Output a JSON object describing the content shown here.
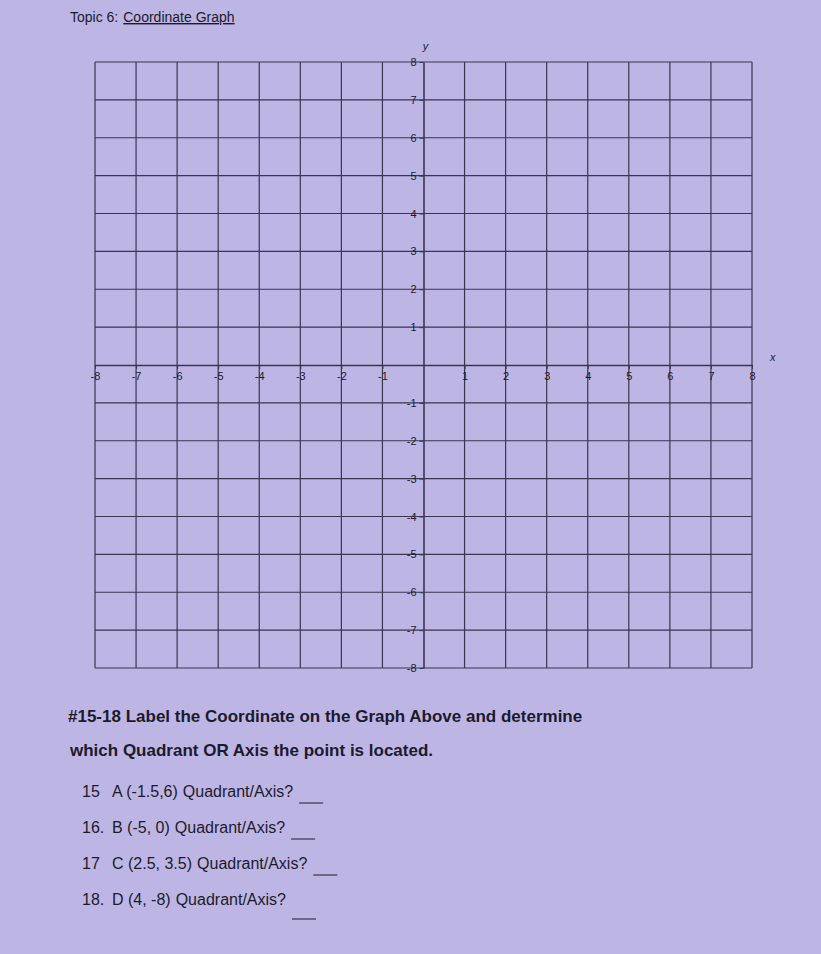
{
  "header": {
    "topic": "Topic 6:",
    "title": "Coordinate Graph"
  },
  "chart_data": {
    "type": "scatter",
    "x_label": "x",
    "y_label": "y",
    "xlim": [
      -8,
      8
    ],
    "ylim": [
      -8,
      8
    ],
    "xticks": [
      -8,
      -7,
      -6,
      -5,
      -4,
      -3,
      -2,
      -1,
      1,
      2,
      3,
      4,
      5,
      6,
      7,
      8
    ],
    "yticks": [
      -8,
      -7,
      -6,
      -5,
      -4,
      -3,
      -2,
      -1,
      1,
      2,
      3,
      4,
      5,
      6,
      7,
      8
    ],
    "grid": true
  },
  "instructions": [
    "#15-18 Label the Coordinate on the Graph Above and determine",
    "which Quadrant OR Axis the point is located."
  ],
  "questions": [
    {
      "number": "15",
      "point": "A (-1.5,6)",
      "prompt": "Quadrant/Axis?"
    },
    {
      "number": "16.",
      "point": "B (-5, 0)",
      "prompt": "Quadrant/Axis?"
    },
    {
      "number": "17",
      "point": "C (2.5, 3.5)",
      "prompt": "Quadrant/Axis?"
    },
    {
      "number": "18.",
      "point": "D (4, -8)",
      "prompt": "Quadrant/Axis?"
    }
  ]
}
